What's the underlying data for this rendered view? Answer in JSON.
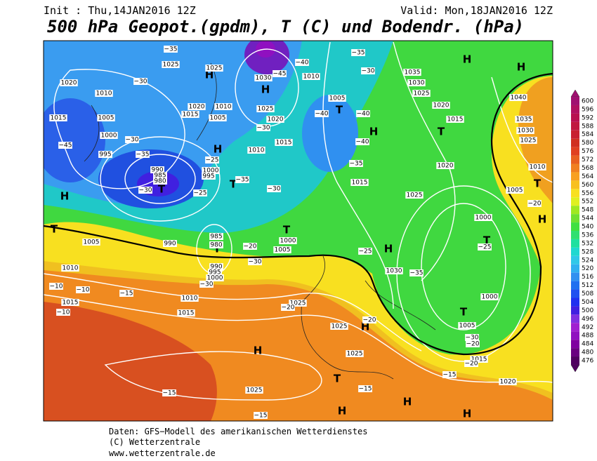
{
  "header": {
    "init": "Init : Thu,14JAN2016 12Z",
    "valid": "Valid: Mon,18JAN2016 12Z",
    "title": "500 hPa Geopot.(gpdm), T (C) und Bodendr. (hPa)"
  },
  "colorbar": {
    "levels": [
      600,
      596,
      592,
      588,
      584,
      580,
      576,
      572,
      568,
      564,
      560,
      556,
      552,
      548,
      544,
      540,
      536,
      532,
      528,
      524,
      520,
      516,
      512,
      508,
      504,
      500,
      496,
      492,
      488,
      484,
      480,
      476
    ],
    "colors": [
      "#a01070",
      "#b01060",
      "#b81050",
      "#c01840",
      "#c82030",
      "#d03020",
      "#e04020",
      "#e86020",
      "#f08020",
      "#f8a020",
      "#f8c020",
      "#f8e020",
      "#e0f020",
      "#a0e820",
      "#70e030",
      "#40e040",
      "#30e070",
      "#20e0a0",
      "#20d8d0",
      "#30c8e8",
      "#30b0f0",
      "#3090f0",
      "#2070f0",
      "#2050f0",
      "#2030f0",
      "#4020e0",
      "#8030e0",
      "#a020d0",
      "#9010c0",
      "#8000a0",
      "#6a0080",
      "#500060"
    ]
  },
  "map": {
    "labels": [
      "H",
      "H",
      "H",
      "H",
      "H",
      "H",
      "H",
      "H",
      "H",
      "H",
      "H",
      "H",
      "H",
      "H",
      "T",
      "T",
      "T",
      "T",
      "T",
      "T",
      "T",
      "T",
      "T",
      "T",
      "T",
      "1025",
      "1025",
      "1030",
      "1010",
      "1020",
      "1010",
      "1005",
      "1015",
      "1020",
      "1010",
      "1005",
      "1025",
      "1020",
      "1015",
      "1015",
      "1005",
      "1000",
      "995",
      "1010",
      "990",
      "985",
      "980",
      "1000",
      "995",
      "1015",
      "1025",
      "1020",
      "1015",
      "1020",
      "1025",
      "1030",
      "1035",
      "1040",
      "1035",
      "1030",
      "1025",
      "1010",
      "1005",
      "1000",
      "1005",
      "990",
      "985",
      "980",
      "1000",
      "1005",
      "1010",
      "1030",
      "1000",
      "1005",
      "1015",
      "1020",
      "1015",
      "1010",
      "1015",
      "1025",
      "1025",
      "1025",
      "1025",
      "990",
      "995",
      "1000",
      "−35",
      "−30",
      "−45",
      "−40",
      "−35",
      "−30",
      "−40",
      "−40",
      "−40",
      "−45",
      "−30",
      "−35",
      "−30",
      "−25",
      "−30",
      "−35",
      "−25",
      "−30",
      "−35",
      "−20",
      "−30",
      "−25",
      "−35",
      "−30",
      "−20",
      "−25",
      "−10",
      "−10",
      "−15",
      "−20",
      "−20",
      "−30",
      "−20",
      "−20",
      "−15",
      "−15",
      "−15",
      "−15",
      "−10"
    ]
  },
  "footer": {
    "line1": "Daten: GFS−Modell des amerikanischen Wetterdienstes",
    "line2": "(C) Wetterzentrale",
    "line3": "www.wetterzentrale.de"
  }
}
